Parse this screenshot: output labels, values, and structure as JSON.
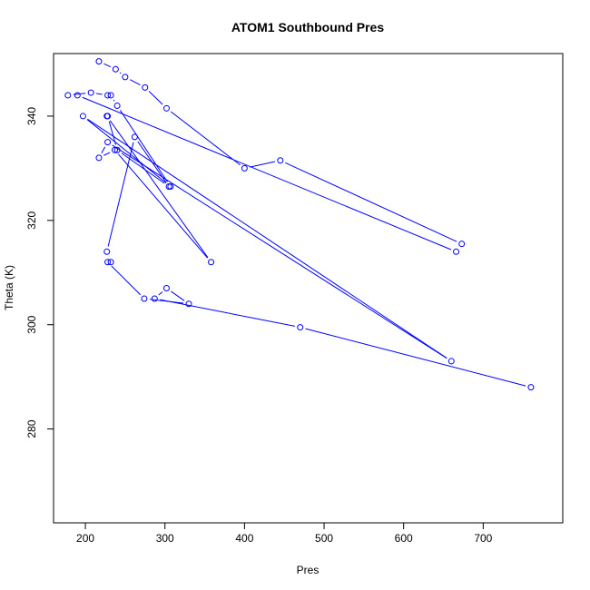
{
  "chart_data": {
    "type": "line",
    "title": "ATOM1 Southbound Pres",
    "xlabel": "Pres",
    "ylabel": "Theta (K)",
    "xlim": [
      160,
      800
    ],
    "ylim": [
      262,
      352
    ],
    "xticks": [
      200,
      300,
      400,
      500,
      600,
      700
    ],
    "yticks": [
      280,
      300,
      320,
      340
    ],
    "grid": false,
    "line_color": "#0000ff",
    "marker": "open-circle",
    "series": [
      {
        "x": [
          217,
          238,
          250,
          275,
          302,
          400,
          445,
          673,
          666,
          190,
          178,
          207,
          228,
          232,
          240,
          307,
          197,
          660,
          228,
          217,
          237,
          358,
          227,
          228,
          240,
          305,
          262,
          227,
          232,
          228,
          274,
          330,
          302,
          287,
          470,
          760
        ],
        "y": [
          350.5,
          349,
          347.5,
          345.5,
          341.5,
          330,
          331.5,
          315.5,
          314,
          344,
          344,
          344.5,
          344,
          344,
          342,
          326.5,
          340,
          293,
          335,
          332,
          333.5,
          312,
          340,
          340,
          333.5,
          326.5,
          336,
          314,
          312,
          312,
          305,
          304,
          307,
          305,
          299.5,
          288
        ]
      }
    ]
  }
}
